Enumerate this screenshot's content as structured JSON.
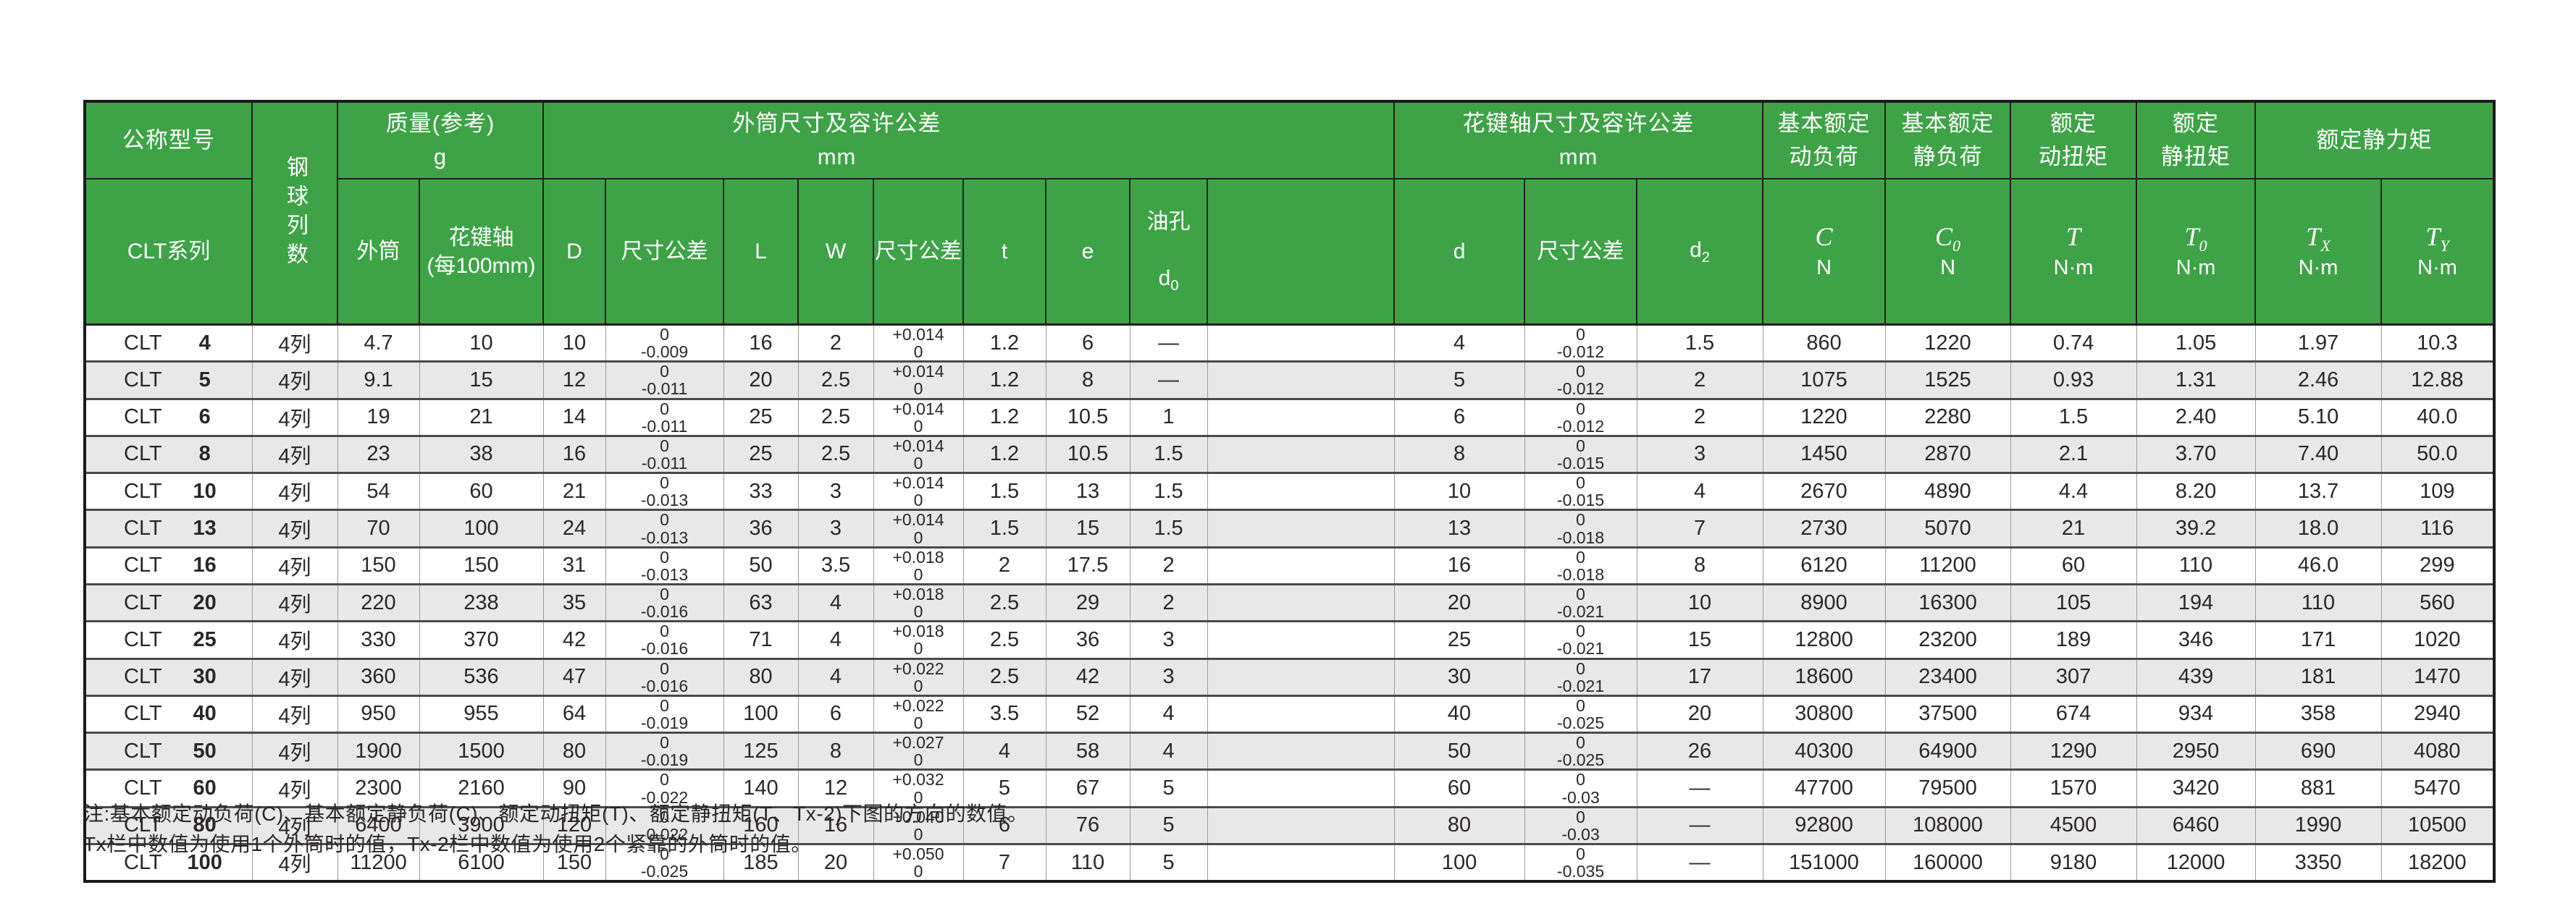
{
  "table": {
    "header": {
      "model_group": "公称型号",
      "model_series": "CLT系列",
      "ball_rows": "钢球列数",
      "mass_title": "质量(参考)\ng",
      "mass_col1": "外筒",
      "mass_col2": "花键轴\n(每100mm)",
      "outer_title": "外筒尺寸及容许公差\nmm",
      "spline_title": "花键轴尺寸及容许公差\nmm",
      "dim_cols": {
        "D": "D",
        "tol": "尺寸公差",
        "L": "L",
        "W": "W",
        "t": "t",
        "e": "e"
      },
      "oil": {
        "line1": "油孔",
        "base": "d",
        "sub": "0"
      },
      "spline_cols": {
        "d": "d",
        "tol": "尺寸公差",
        "d2_base": "d",
        "d2_sub": "2"
      },
      "load_groups": [
        "基本额定\n动负荷",
        "基本额定\n静负荷",
        "额定\n动扭矩",
        "额定\n静扭矩",
        "额定静力矩"
      ],
      "symbols": [
        {
          "base": "C",
          "sub": "",
          "unit": "N"
        },
        {
          "base": "C",
          "sub": "0",
          "unit": "N"
        },
        {
          "base": "T",
          "sub": "",
          "unit": "N·m"
        },
        {
          "base": "T",
          "sub": "0",
          "unit": "N·m"
        },
        {
          "base": "T",
          "sub": "X",
          "unit": "N·m"
        },
        {
          "base": "T",
          "sub": "Y",
          "unit": "N·m"
        }
      ]
    },
    "rows": [
      {
        "model": "CLT",
        "size": "4",
        "ball": "4列",
        "mass_cyl": "4.7",
        "mass_shaft": "10",
        "D": "10",
        "D_tol": [
          "0",
          "-0.009"
        ],
        "L": "16",
        "W": "2",
        "W_tol": [
          "+0.014",
          "0"
        ],
        "t": "1.2",
        "e": "6",
        "oil": "—",
        "d": "4",
        "d_tol": [
          "0",
          "-0.012"
        ],
        "d2": "1.5",
        "C": "860",
        "C0": "1220",
        "T": "0.74",
        "T0": "1.05",
        "Tx": "1.97",
        "Ty": "10.3"
      },
      {
        "model": "CLT",
        "size": "5",
        "ball": "4列",
        "mass_cyl": "9.1",
        "mass_shaft": "15",
        "D": "12",
        "D_tol": [
          "0",
          "-0.011"
        ],
        "L": "20",
        "W": "2.5",
        "W_tol": [
          "+0.014",
          "0"
        ],
        "t": "1.2",
        "e": "8",
        "oil": "—",
        "d": "5",
        "d_tol": [
          "0",
          "-0.012"
        ],
        "d2": "2",
        "C": "1075",
        "C0": "1525",
        "T": "0.93",
        "T0": "1.31",
        "Tx": "2.46",
        "Ty": "12.88"
      },
      {
        "model": "CLT",
        "size": "6",
        "ball": "4列",
        "mass_cyl": "19",
        "mass_shaft": "21",
        "D": "14",
        "D_tol": [
          "0",
          "-0.011"
        ],
        "L": "25",
        "W": "2.5",
        "W_tol": [
          "+0.014",
          "0"
        ],
        "t": "1.2",
        "e": "10.5",
        "oil": "1",
        "d": "6",
        "d_tol": [
          "0",
          "-0.012"
        ],
        "d2": "2",
        "C": "1220",
        "C0": "2280",
        "T": "1.5",
        "T0": "2.40",
        "Tx": "5.10",
        "Ty": "40.0"
      },
      {
        "model": "CLT",
        "size": "8",
        "ball": "4列",
        "mass_cyl": "23",
        "mass_shaft": "38",
        "D": "16",
        "D_tol": [
          "0",
          "-0.011"
        ],
        "L": "25",
        "W": "2.5",
        "W_tol": [
          "+0.014",
          "0"
        ],
        "t": "1.2",
        "e": "10.5",
        "oil": "1.5",
        "d": "8",
        "d_tol": [
          "0",
          "-0.015"
        ],
        "d2": "3",
        "C": "1450",
        "C0": "2870",
        "T": "2.1",
        "T0": "3.70",
        "Tx": "7.40",
        "Ty": "50.0"
      },
      {
        "model": "CLT",
        "size": "10",
        "ball": "4列",
        "mass_cyl": "54",
        "mass_shaft": "60",
        "D": "21",
        "D_tol": [
          "0",
          "-0.013"
        ],
        "L": "33",
        "W": "3",
        "W_tol": [
          "+0.014",
          "0"
        ],
        "t": "1.5",
        "e": "13",
        "oil": "1.5",
        "d": "10",
        "d_tol": [
          "0",
          "-0.015"
        ],
        "d2": "4",
        "C": "2670",
        "C0": "4890",
        "T": "4.4",
        "T0": "8.20",
        "Tx": "13.7",
        "Ty": "109"
      },
      {
        "model": "CLT",
        "size": "13",
        "ball": "4列",
        "mass_cyl": "70",
        "mass_shaft": "100",
        "D": "24",
        "D_tol": [
          "0",
          "-0.013"
        ],
        "L": "36",
        "W": "3",
        "W_tol": [
          "+0.014",
          "0"
        ],
        "t": "1.5",
        "e": "15",
        "oil": "1.5",
        "d": "13",
        "d_tol": [
          "0",
          "-0.018"
        ],
        "d2": "7",
        "C": "2730",
        "C0": "5070",
        "T": "21",
        "T0": "39.2",
        "Tx": "18.0",
        "Ty": "116"
      },
      {
        "model": "CLT",
        "size": "16",
        "ball": "4列",
        "mass_cyl": "150",
        "mass_shaft": "150",
        "D": "31",
        "D_tol": [
          "0",
          "-0.013"
        ],
        "L": "50",
        "W": "3.5",
        "W_tol": [
          "+0.018",
          "0"
        ],
        "t": "2",
        "e": "17.5",
        "oil": "2",
        "d": "16",
        "d_tol": [
          "0",
          "-0.018"
        ],
        "d2": "8",
        "C": "6120",
        "C0": "11200",
        "T": "60",
        "T0": "110",
        "Tx": "46.0",
        "Ty": "299"
      },
      {
        "model": "CLT",
        "size": "20",
        "ball": "4列",
        "mass_cyl": "220",
        "mass_shaft": "238",
        "D": "35",
        "D_tol": [
          "0",
          "-0.016"
        ],
        "L": "63",
        "W": "4",
        "W_tol": [
          "+0.018",
          "0"
        ],
        "t": "2.5",
        "e": "29",
        "oil": "2",
        "d": "20",
        "d_tol": [
          "0",
          "-0.021"
        ],
        "d2": "10",
        "C": "8900",
        "C0": "16300",
        "T": "105",
        "T0": "194",
        "Tx": "110",
        "Ty": "560"
      },
      {
        "model": "CLT",
        "size": "25",
        "ball": "4列",
        "mass_cyl": "330",
        "mass_shaft": "370",
        "D": "42",
        "D_tol": [
          "0",
          "-0.016"
        ],
        "L": "71",
        "W": "4",
        "W_tol": [
          "+0.018",
          "0"
        ],
        "t": "2.5",
        "e": "36",
        "oil": "3",
        "d": "25",
        "d_tol": [
          "0",
          "-0.021"
        ],
        "d2": "15",
        "C": "12800",
        "C0": "23200",
        "T": "189",
        "T0": "346",
        "Tx": "171",
        "Ty": "1020"
      },
      {
        "model": "CLT",
        "size": "30",
        "ball": "4列",
        "mass_cyl": "360",
        "mass_shaft": "536",
        "D": "47",
        "D_tol": [
          "0",
          "-0.016"
        ],
        "L": "80",
        "W": "4",
        "W_tol": [
          "+0.022",
          "0"
        ],
        "t": "2.5",
        "e": "42",
        "oil": "3",
        "d": "30",
        "d_tol": [
          "0",
          "-0.021"
        ],
        "d2": "17",
        "C": "18600",
        "C0": "23400",
        "T": "307",
        "T0": "439",
        "Tx": "181",
        "Ty": "1470"
      },
      {
        "model": "CLT",
        "size": "40",
        "ball": "4列",
        "mass_cyl": "950",
        "mass_shaft": "955",
        "D": "64",
        "D_tol": [
          "0",
          "-0.019"
        ],
        "L": "100",
        "W": "6",
        "W_tol": [
          "+0.022",
          "0"
        ],
        "t": "3.5",
        "e": "52",
        "oil": "4",
        "d": "40",
        "d_tol": [
          "0",
          "-0.025"
        ],
        "d2": "20",
        "C": "30800",
        "C0": "37500",
        "T": "674",
        "T0": "934",
        "Tx": "358",
        "Ty": "2940"
      },
      {
        "model": "CLT",
        "size": "50",
        "ball": "4列",
        "mass_cyl": "1900",
        "mass_shaft": "1500",
        "D": "80",
        "D_tol": [
          "0",
          "-0.019"
        ],
        "L": "125",
        "W": "8",
        "W_tol": [
          "+0.027",
          "0"
        ],
        "t": "4",
        "e": "58",
        "oil": "4",
        "d": "50",
        "d_tol": [
          "0",
          "-0.025"
        ],
        "d2": "26",
        "C": "40300",
        "C0": "64900",
        "T": "1290",
        "T0": "2950",
        "Tx": "690",
        "Ty": "4080"
      },
      {
        "model": "CLT",
        "size": "60",
        "ball": "4列",
        "mass_cyl": "2300",
        "mass_shaft": "2160",
        "D": "90",
        "D_tol": [
          "0",
          "-0.022"
        ],
        "L": "140",
        "W": "12",
        "W_tol": [
          "+0.032",
          "0"
        ],
        "t": "5",
        "e": "67",
        "oil": "5",
        "d": "60",
        "d_tol": [
          "0",
          "-0.03"
        ],
        "d2": "—",
        "C": "47700",
        "C0": "79500",
        "T": "1570",
        "T0": "3420",
        "Tx": "881",
        "Ty": "5470"
      },
      {
        "model": "CLT",
        "size": "80",
        "ball": "4列",
        "mass_cyl": "6400",
        "mass_shaft": "3900",
        "D": "120",
        "D_tol": [
          "0",
          "-0.022"
        ],
        "L": "160",
        "W": "16",
        "W_tol": [
          "+0.040",
          "0"
        ],
        "t": "6",
        "e": "76",
        "oil": "5",
        "d": "80",
        "d_tol": [
          "0",
          "-0.03"
        ],
        "d2": "—",
        "C": "92800",
        "C0": "108000",
        "T": "4500",
        "T0": "6460",
        "Tx": "1990",
        "Ty": "10500"
      },
      {
        "model": "CLT",
        "size": "100",
        "ball": "4列",
        "mass_cyl": "11200",
        "mass_shaft": "6100",
        "D": "150",
        "D_tol": [
          "0",
          "-0.025"
        ],
        "L": "185",
        "W": "20",
        "W_tol": [
          "+0.050",
          "0"
        ],
        "t": "7",
        "e": "110",
        "oil": "5",
        "d": "100",
        "d_tol": [
          "0",
          "-0.035"
        ],
        "d2": "—",
        "C": "151000",
        "C0": "160000",
        "T": "9180",
        "T0": "12000",
        "Tx": "3350",
        "Ty": "18200"
      }
    ]
  },
  "footnote": {
    "line1": "注:基本额定动负荷(C)、基本额定静负荷(C)、额定动扭矩(T)、额定静扭矩(T、Tx-2)下图的方向的数值。",
    "line2": "Tx栏中数值为使用1个外筒时的值，Tx-2栏中数值为使用2个紧靠的外筒时的值。"
  },
  "colors": {
    "header_green": "#3ea347",
    "stripe_gray": "#e8e8e8",
    "border_dark": "#1f1f1f"
  }
}
